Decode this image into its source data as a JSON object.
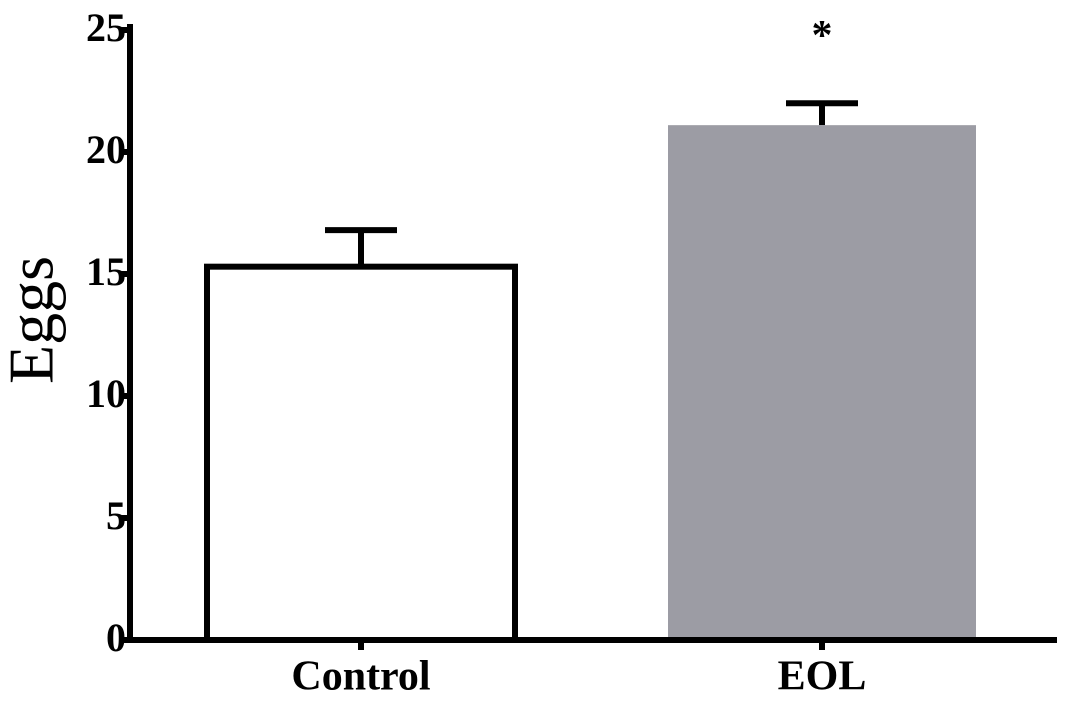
{
  "chart_data": {
    "type": "bar",
    "ylabel": "Eggs",
    "categories": [
      "Control",
      "EOL"
    ],
    "values": [
      15.3,
      21.1
    ],
    "errors": [
      1.5,
      0.9
    ],
    "colors": [
      "#ffffff",
      "#9c9ca4"
    ],
    "annotation": "*",
    "ylim": [
      0,
      25
    ],
    "yticks": [
      0,
      5,
      10,
      15,
      20,
      25
    ]
  }
}
